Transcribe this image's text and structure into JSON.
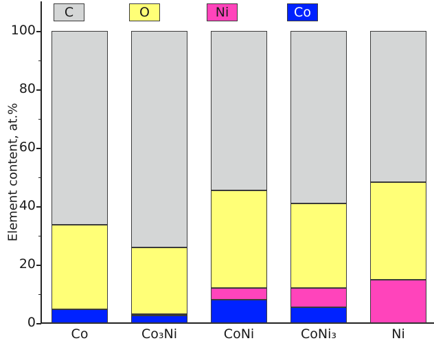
{
  "chart_data": {
    "type": "bar",
    "stacked": true,
    "title": "",
    "xlabel": "",
    "ylabel": "Element content, at.%",
    "ylim": [
      0,
      110
    ],
    "yticks": [
      0,
      20,
      40,
      60,
      80,
      100
    ],
    "grid": false,
    "legend_position": "top",
    "categories": [
      "Co",
      "Co₃Ni",
      "CoNi",
      "CoNi₃",
      "Ni"
    ],
    "series": [
      {
        "name": "Co",
        "color": "#0022ff",
        "values": [
          4.7,
          2.6,
          8.1,
          5.5,
          0.0
        ]
      },
      {
        "name": "Ni",
        "color": "#ff44bb",
        "values": [
          0.0,
          0.5,
          3.9,
          6.6,
          14.9
        ]
      },
      {
        "name": "O",
        "color": "#ffff77",
        "values": [
          28.9,
          22.8,
          33.5,
          28.9,
          33.4
        ]
      },
      {
        "name": "C",
        "color": "#d4d6d6",
        "values": [
          66.4,
          74.1,
          54.5,
          59.0,
          51.7
        ]
      }
    ]
  },
  "legend": [
    {
      "label": "C",
      "color": "#d4d6d6",
      "text_color": "#1a1a1a"
    },
    {
      "label": "O",
      "color": "#ffff77",
      "text_color": "#1a1a1a"
    },
    {
      "label": "Ni",
      "color": "#ff44bb",
      "text_color": "#1a1a1a"
    },
    {
      "label": "Co",
      "color": "#0022ff",
      "text_color": "#ffffff"
    }
  ],
  "axis": {
    "ylabel": "Element content, at.%",
    "yticks": [
      "0",
      "20",
      "40",
      "60",
      "80",
      "100"
    ],
    "xticks": [
      "Co",
      "Co₃Ni",
      "CoNi",
      "CoNi₃",
      "Ni"
    ]
  }
}
